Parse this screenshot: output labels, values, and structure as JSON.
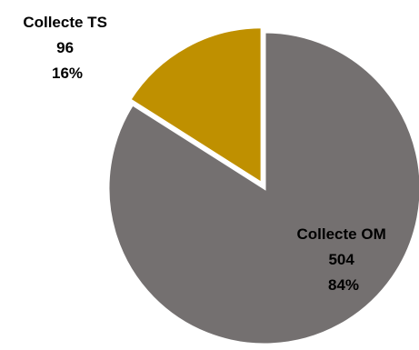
{
  "chart_data": {
    "type": "pie",
    "title": "",
    "legend": "none",
    "slices": [
      {
        "label": "Collecte TS",
        "value": 96,
        "percent": "16%",
        "value_text": "96",
        "color": "#BF9000",
        "exploded": true
      },
      {
        "label": "Collecte OM",
        "value": 504,
        "percent": "84%",
        "value_text": "504",
        "color": "#747070",
        "exploded": false
      }
    ]
  }
}
